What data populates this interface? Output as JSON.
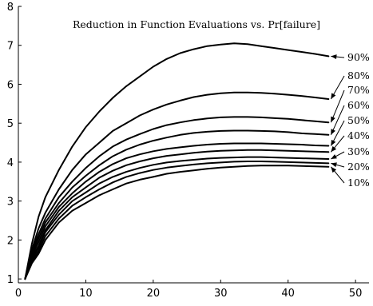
{
  "chart_data": {
    "type": "line",
    "title": "Reduction in Function Evaluations vs. Pr[failure]",
    "xlabel": "",
    "ylabel": "",
    "xlim": [
      0,
      52
    ],
    "ylim": [
      0.9,
      8
    ],
    "xticks": [
      "0",
      "10",
      "20",
      "30",
      "40",
      "50"
    ],
    "yticks": [
      "1",
      "2",
      "3",
      "4",
      "5",
      "6",
      "7",
      "8"
    ],
    "grid": false,
    "x": [
      1,
      2,
      3,
      4,
      6,
      8,
      10,
      12,
      14,
      16,
      18,
      20,
      22,
      24,
      26,
      28,
      30,
      32,
      34,
      36,
      38,
      40,
      42,
      44,
      46
    ],
    "series": [
      {
        "name": "90%",
        "values": [
          1.0,
          1.9,
          2.6,
          3.1,
          3.8,
          4.4,
          4.9,
          5.3,
          5.65,
          5.95,
          6.2,
          6.45,
          6.65,
          6.8,
          6.9,
          6.98,
          7.02,
          7.05,
          7.03,
          6.98,
          6.93,
          6.88,
          6.83,
          6.78,
          6.72
        ]
      },
      {
        "name": "80%",
        "values": [
          1.0,
          1.75,
          2.3,
          2.7,
          3.3,
          3.8,
          4.2,
          4.5,
          4.8,
          5.0,
          5.2,
          5.35,
          5.48,
          5.58,
          5.67,
          5.73,
          5.77,
          5.79,
          5.79,
          5.78,
          5.76,
          5.73,
          5.7,
          5.66,
          5.62
        ]
      },
      {
        "name": "70%",
        "values": [
          1.0,
          1.7,
          2.15,
          2.55,
          3.1,
          3.5,
          3.85,
          4.15,
          4.4,
          4.58,
          4.72,
          4.85,
          4.95,
          5.02,
          5.08,
          5.12,
          5.15,
          5.16,
          5.16,
          5.15,
          5.13,
          5.11,
          5.08,
          5.05,
          5.02
        ]
      },
      {
        "name": "60%",
        "values": [
          1.0,
          1.65,
          2.05,
          2.45,
          2.95,
          3.35,
          3.65,
          3.92,
          4.15,
          4.32,
          4.45,
          4.55,
          4.63,
          4.7,
          4.75,
          4.78,
          4.8,
          4.81,
          4.81,
          4.8,
          4.79,
          4.77,
          4.74,
          4.72,
          4.7
        ]
      },
      {
        "name": "50%",
        "values": [
          1.0,
          1.6,
          1.95,
          2.35,
          2.85,
          3.2,
          3.5,
          3.75,
          3.95,
          4.1,
          4.2,
          4.28,
          4.34,
          4.38,
          4.42,
          4.45,
          4.47,
          4.48,
          4.48,
          4.48,
          4.47,
          4.46,
          4.45,
          4.43,
          4.42
        ]
      },
      {
        "name": "40%",
        "values": [
          1.0,
          1.55,
          1.85,
          2.25,
          2.75,
          3.1,
          3.35,
          3.6,
          3.78,
          3.92,
          4.02,
          4.1,
          4.16,
          4.2,
          4.24,
          4.27,
          4.29,
          4.3,
          4.31,
          4.31,
          4.3,
          4.29,
          4.28,
          4.27,
          4.26
        ]
      },
      {
        "name": "30%",
        "values": [
          1.0,
          1.5,
          1.8,
          2.2,
          2.65,
          3.0,
          3.22,
          3.45,
          3.62,
          3.75,
          3.85,
          3.93,
          3.99,
          4.03,
          4.06,
          4.09,
          4.11,
          4.12,
          4.13,
          4.13,
          4.12,
          4.11,
          4.1,
          4.09,
          4.08
        ]
      },
      {
        "name": "20%",
        "values": [
          1.0,
          1.45,
          1.72,
          2.1,
          2.55,
          2.88,
          3.1,
          3.3,
          3.48,
          3.62,
          3.72,
          3.8,
          3.86,
          3.9,
          3.94,
          3.97,
          3.99,
          4.01,
          4.02,
          4.02,
          4.01,
          4.0,
          3.99,
          3.98,
          3.97
        ]
      },
      {
        "name": "10%",
        "values": [
          1.0,
          1.4,
          1.65,
          2.0,
          2.45,
          2.75,
          2.95,
          3.15,
          3.3,
          3.45,
          3.55,
          3.62,
          3.7,
          3.75,
          3.79,
          3.83,
          3.86,
          3.88,
          3.9,
          3.91,
          3.91,
          3.91,
          3.9,
          3.89,
          3.88
        ]
      }
    ]
  }
}
